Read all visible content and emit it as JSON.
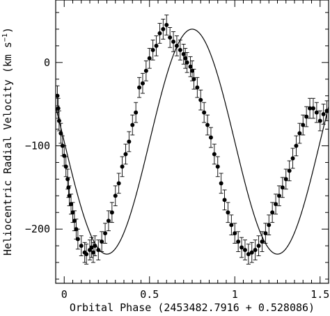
{
  "chart_data": {
    "type": "scatter",
    "title": "",
    "xlabel": "Orbital Phase (2453482.7916 + 0.528086)",
    "ylabel": "Heliocentric Radial Velocity (km s",
    "ylabel_superscript": "−1",
    "ylabel_suffix": ")",
    "xlim": [
      -0.05,
      1.55
    ],
    "ylim": [
      -265,
      75
    ],
    "x_ticks": [
      0,
      0.5,
      1,
      1.5
    ],
    "x_tick_labels": [
      "0",
      "0.5",
      "1",
      "1.5"
    ],
    "y_ticks": [
      0,
      -100,
      -200
    ],
    "y_tick_labels": [
      "0",
      "−100",
      "−200"
    ],
    "grid": false,
    "legend": "none",
    "series": [
      {
        "style": "filled-circle-with-error-bars",
        "x": [
          -0.04,
          -0.035,
          -0.03,
          -0.02,
          -0.01,
          0.0,
          0.01,
          0.02,
          0.025,
          0.03,
          0.04,
          0.05,
          0.06,
          0.07,
          0.08,
          0.1,
          0.12,
          0.13,
          0.15,
          0.16,
          0.17,
          0.18,
          0.2,
          0.22,
          0.24,
          0.26,
          0.28,
          0.3,
          0.32,
          0.34,
          0.36,
          0.38,
          0.4,
          0.42,
          0.44,
          0.46,
          0.48,
          0.5,
          0.52,
          0.54,
          0.56,
          0.58,
          0.6,
          0.62,
          0.64,
          0.66,
          0.68,
          0.7,
          0.71,
          0.72,
          0.74,
          0.75,
          0.76,
          0.78,
          0.8,
          0.82,
          0.84,
          0.86,
          0.88,
          0.9,
          0.92,
          0.94,
          0.96,
          0.98,
          1.0,
          1.02,
          1.04,
          1.06,
          1.08,
          1.1,
          1.12,
          1.14,
          1.16,
          1.18,
          1.2,
          1.22,
          1.24,
          1.26,
          1.28,
          1.3,
          1.32,
          1.34,
          1.36,
          1.38,
          1.4,
          1.42,
          1.44,
          1.46,
          1.48,
          1.5,
          1.52,
          1.54
        ],
        "y": [
          -40,
          -55,
          -70,
          -85,
          -100,
          -112,
          -125,
          -140,
          -150,
          -160,
          -170,
          -180,
          -190,
          -200,
          -212,
          -220,
          -228,
          -230,
          -225,
          -222,
          -228,
          -220,
          -225,
          -215,
          -205,
          -190,
          -180,
          -160,
          -145,
          -125,
          -110,
          -95,
          -75,
          -60,
          -30,
          -25,
          -10,
          5,
          15,
          20,
          35,
          40,
          45,
          30,
          25,
          20,
          15,
          10,
          5,
          0,
          -5,
          -10,
          -20,
          -30,
          -45,
          -60,
          -75,
          -90,
          -110,
          -125,
          -145,
          -165,
          -180,
          -195,
          -205,
          -215,
          -222,
          -225,
          -230,
          -228,
          -225,
          -220,
          -215,
          -205,
          -195,
          -180,
          -170,
          -160,
          -150,
          -140,
          -130,
          -115,
          -100,
          -85,
          -75,
          -65,
          -55,
          -55,
          -60,
          -70,
          -62,
          -58
        ],
        "error": 12
      },
      {
        "style": "line",
        "model": "sinusoid",
        "gamma": -95,
        "amplitude": 135,
        "phase_max": 0.75
      }
    ]
  }
}
